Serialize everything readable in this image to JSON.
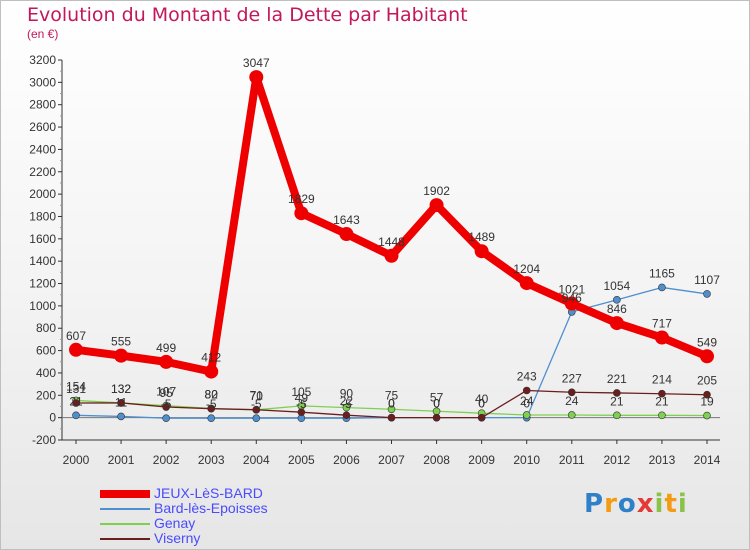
{
  "title": "Evolution du Montant de la Dette par Habitant",
  "unit": "(en €)",
  "logo": {
    "text": "Proxiti",
    "letters": [
      {
        "ch": "P",
        "color": "#2f80c8"
      },
      {
        "ch": "r",
        "color": "#f39c12"
      },
      {
        "ch": "o",
        "color": "#2f80c8"
      },
      {
        "ch": "x",
        "color": "#e53935"
      },
      {
        "ch": "i",
        "color": "#8bc34a"
      },
      {
        "ch": "t",
        "color": "#f39c12"
      },
      {
        "ch": "i",
        "color": "#8bc34a"
      }
    ]
  },
  "chart_data": {
    "type": "line",
    "title": "Evolution du Montant de la Dette par Habitant",
    "ylabel": "(en €)",
    "xlabel": "",
    "ylim": [
      -200,
      3200
    ],
    "yticks": [
      -200,
      0,
      200,
      400,
      600,
      800,
      1000,
      1200,
      1400,
      1600,
      1800,
      2000,
      2200,
      2400,
      2600,
      2800,
      3000,
      3200
    ],
    "categories": [
      "2000",
      "2001",
      "2002",
      "2003",
      "2004",
      "2005",
      "2006",
      "2007",
      "2008",
      "2009",
      "2010",
      "2011",
      "2012",
      "2013",
      "2014"
    ],
    "grid": false,
    "legend_position": "bottom-left",
    "series": [
      {
        "name": "JEUX-LèS-BARD",
        "color": "#ee0000",
        "values": [
          607,
          555,
          499,
          412,
          3047,
          1829,
          1643,
          1448,
          1902,
          1489,
          1204,
          1021,
          846,
          717,
          549
        ]
      },
      {
        "name": "Bard-lès-Epoisses",
        "color": "#4f8fd0",
        "values": [
          21,
          11,
          -5,
          -5,
          -5,
          -5,
          -5,
          0,
          0,
          0,
          0,
          946,
          1054,
          1165,
          1107
        ]
      },
      {
        "name": "Genay",
        "color": "#7fd04f",
        "values": [
          154,
          132,
          107,
          82,
          70,
          105,
          90,
          75,
          57,
          40,
          24,
          24,
          21,
          21,
          19
        ]
      },
      {
        "name": "Viserny",
        "color": "#6b1e1e",
        "values": [
          131,
          132,
          95,
          80,
          71,
          49,
          22,
          0,
          0,
          0,
          243,
          227,
          221,
          214,
          205
        ]
      }
    ]
  }
}
